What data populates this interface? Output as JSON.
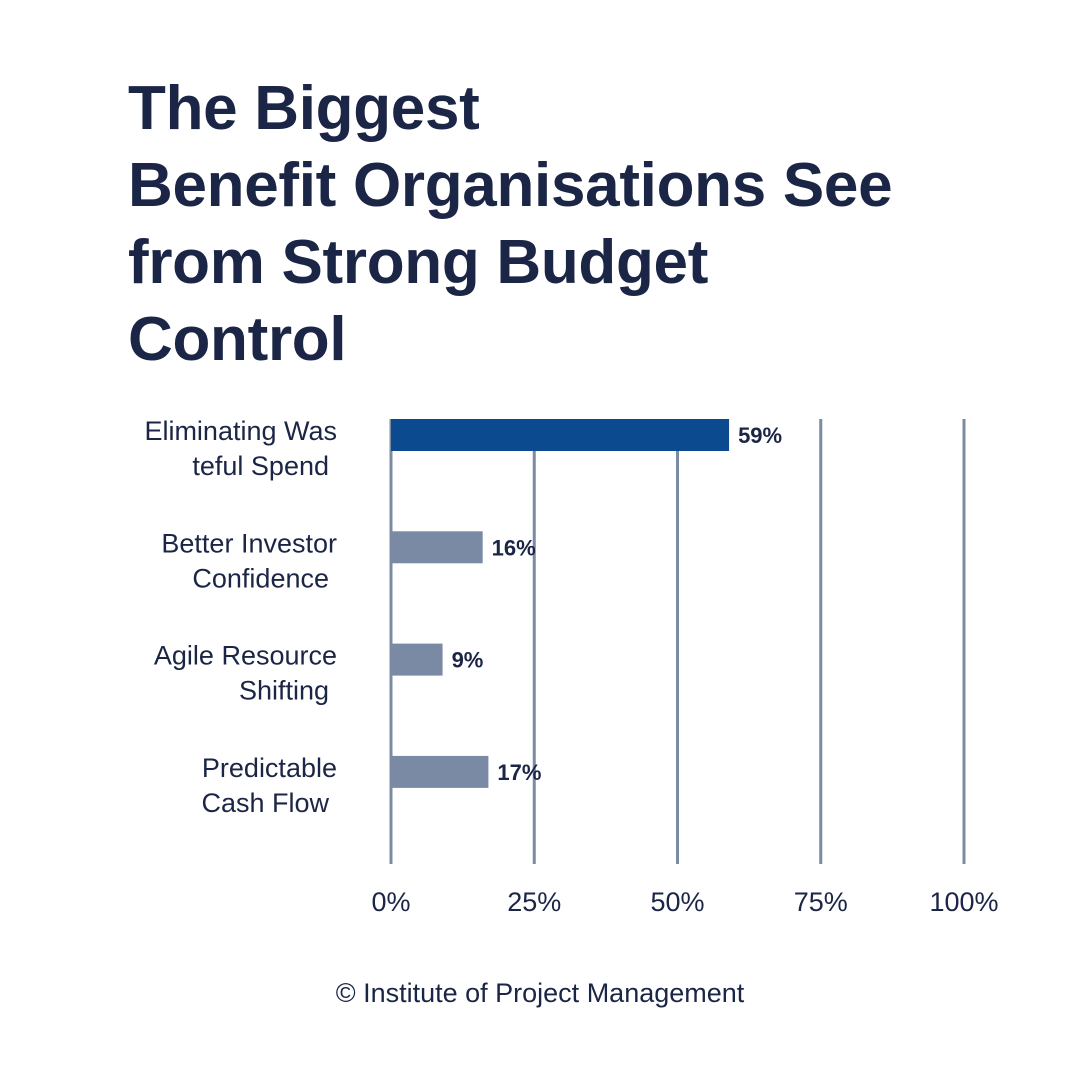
{
  "title_lines": [
    "The Biggest",
    "Benefit Organisations See",
    "from Strong Budget",
    "Control"
  ],
  "footer": "© Institute of Project Management",
  "colors": {
    "highlight_bar": "#0b4a8f",
    "bar": "#7a8aa5",
    "gridline": "#7b8ba3",
    "text": "#1b2545",
    "background": "#ffffff"
  },
  "chart_data": {
    "type": "bar",
    "orientation": "horizontal",
    "title": "The Biggest Benefit Organisations See from Strong Budget Control",
    "categories": [
      [
        "Eliminating Was",
        "teful Spend"
      ],
      [
        "Better Investor",
        "Confidence"
      ],
      [
        "Agile Resource",
        "Shifting"
      ],
      [
        "Predictable",
        "Cash Flow"
      ]
    ],
    "values": [
      59,
      16,
      9,
      17
    ],
    "value_labels": [
      "59%",
      "16%",
      "9%",
      "17%"
    ],
    "highlighted_index": 0,
    "xlim": [
      0,
      100
    ],
    "xticks": [
      0,
      25,
      50,
      75,
      100
    ],
    "xtick_labels": [
      "0%",
      "25%",
      "50%",
      "75%",
      "100%"
    ],
    "grid": "vertical",
    "legend": "none"
  }
}
